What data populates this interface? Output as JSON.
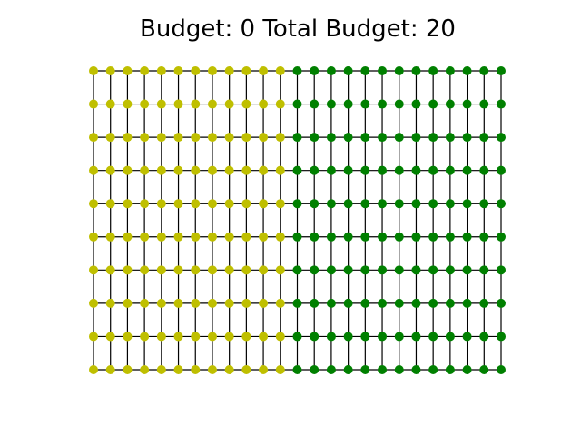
{
  "title": {
    "budget_label": "Budget:",
    "budget_value": "0",
    "total_label": "Total Budget:",
    "total_value": "20"
  },
  "grid": {
    "columns": 25,
    "rows": 10,
    "yellow_columns": 12,
    "colors": {
      "yellow_node": "#bfbf00",
      "green_node": "#008000",
      "edge": "#000000"
    }
  }
}
